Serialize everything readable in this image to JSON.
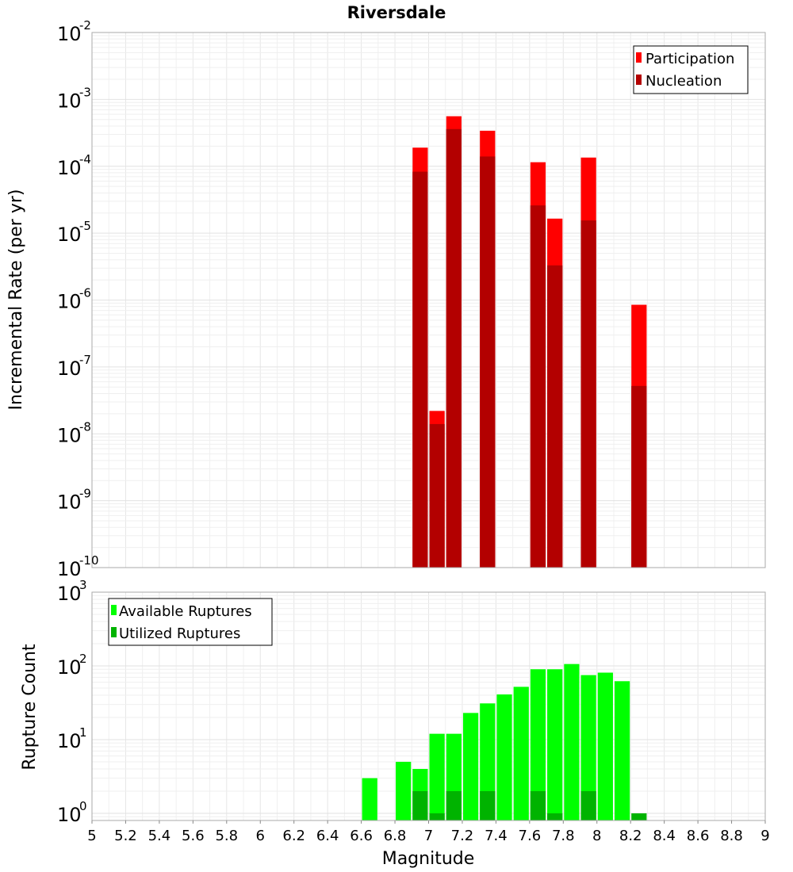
{
  "title": "Riversdale",
  "xlabel": "Magnitude",
  "chart_data": [
    {
      "type": "bar",
      "title": "Riversdale",
      "ylabel": "Incremental Rate (per yr)",
      "yscale": "log",
      "ylim": [
        1e-10,
        0.01
      ],
      "xlim": [
        5,
        9
      ],
      "xlabel": "Magnitude",
      "grid": true,
      "legend_position": "top-right",
      "bar_width": 0.1,
      "x": [
        6.95,
        7.05,
        7.15,
        7.35,
        7.65,
        7.75,
        7.95,
        8.25
      ],
      "series": [
        {
          "name": "Participation",
          "color": "#ff0000",
          "values": [
            0.00019,
            2.2e-08,
            0.00056,
            0.00034,
            0.000115,
            1.65e-05,
            0.000135,
            8.5e-07
          ]
        },
        {
          "name": "Nucleation",
          "color": "#b30000",
          "values": [
            8.3e-05,
            1.4e-08,
            0.00036,
            0.00014,
            2.6e-05,
            3.3e-06,
            1.55e-05,
            5.2e-08
          ]
        }
      ],
      "y_ticks": [
        {
          "base": "10",
          "exp": "-10"
        },
        {
          "base": "10",
          "exp": "-9"
        },
        {
          "base": "10",
          "exp": "-8"
        },
        {
          "base": "10",
          "exp": "-7"
        },
        {
          "base": "10",
          "exp": "-6"
        },
        {
          "base": "10",
          "exp": "-5"
        },
        {
          "base": "10",
          "exp": "-4"
        },
        {
          "base": "10",
          "exp": "-3"
        },
        {
          "base": "10",
          "exp": "-2"
        }
      ]
    },
    {
      "type": "bar",
      "ylabel": "Rupture Count",
      "yscale": "log",
      "ylim": [
        0.8,
        1000
      ],
      "xlim": [
        5,
        9
      ],
      "xlabel": "Magnitude",
      "grid": true,
      "legend_position": "top-left",
      "bar_width": 0.1,
      "series": [
        {
          "name": "Available Ruptures",
          "color": "#00ff00",
          "x": [
            6.65,
            6.85,
            6.95,
            7.05,
            7.15,
            7.25,
            7.35,
            7.45,
            7.55,
            7.65,
            7.75,
            7.85,
            7.95,
            8.05,
            8.15
          ],
          "values": [
            3,
            5,
            4,
            12,
            12,
            23,
            31,
            41,
            52,
            90,
            90,
            106,
            75,
            81,
            62
          ]
        },
        {
          "name": "Utilized Ruptures",
          "color": "#00b300",
          "x": [
            6.95,
            7.05,
            7.15,
            7.35,
            7.65,
            7.75,
            7.95,
            8.25
          ],
          "values": [
            2,
            1,
            2,
            2,
            2,
            1,
            2,
            1
          ]
        }
      ],
      "y_ticks": [
        {
          "base": "10",
          "exp": "0"
        },
        {
          "base": "10",
          "exp": "1"
        },
        {
          "base": "10",
          "exp": "2"
        },
        {
          "base": "10",
          "exp": "3"
        }
      ]
    }
  ],
  "x_ticks": [
    "5",
    "5.2",
    "5.4",
    "5.6",
    "5.8",
    "6",
    "6.2",
    "6.4",
    "6.6",
    "6.8",
    "7",
    "7.2",
    "7.4",
    "7.6",
    "7.8",
    "8",
    "8.2",
    "8.4",
    "8.6",
    "8.8",
    "9"
  ]
}
